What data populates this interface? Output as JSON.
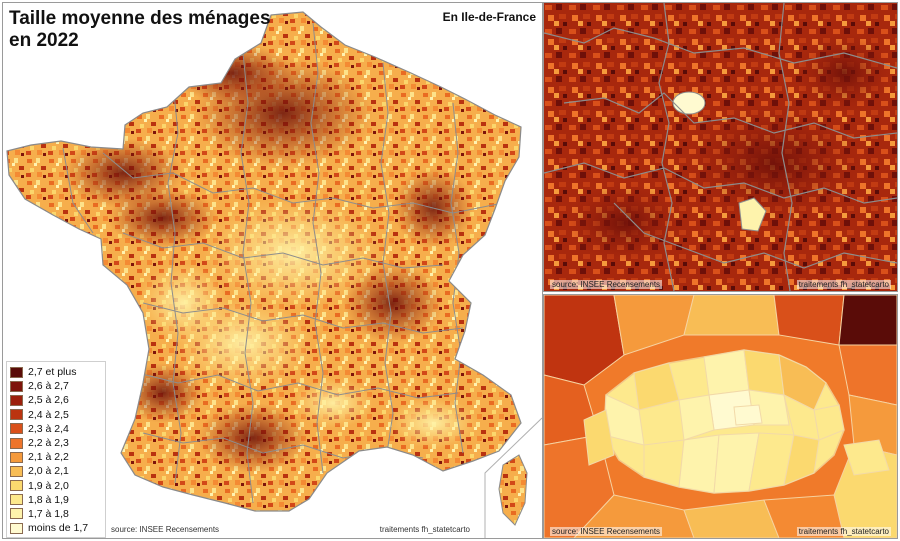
{
  "main_map": {
    "title_line1": "Taille moyenne des ménages",
    "title_line2": "en 2022",
    "inset_label": "En Ile-de-France",
    "source": "source: INSEE Recensements",
    "credit": "traitements fh_statetcarto"
  },
  "legend": {
    "items": [
      {
        "label": "2,7 et plus",
        "color": "#5a0c08"
      },
      {
        "label": "2,6 à 2,7",
        "color": "#7e140b"
      },
      {
        "label": "2,5 à 2,6",
        "color": "#9c200c"
      },
      {
        "label": "2,4 à 2,5",
        "color": "#bb3410"
      },
      {
        "label": "2,3 à 2,4",
        "color": "#d9501a"
      },
      {
        "label": "2,2 à 2,3",
        "color": "#ee742a"
      },
      {
        "label": "2,1 à 2,2",
        "color": "#f59a3c"
      },
      {
        "label": "2,0 à 2,1",
        "color": "#f8bd55"
      },
      {
        "label": "1,9 à 2,0",
        "color": "#fbd96f"
      },
      {
        "label": "1,8 à 1,9",
        "color": "#fde98d"
      },
      {
        "label": "1,7 à 1,8",
        "color": "#fef3ac"
      },
      {
        "label": "moins de 1,7",
        "color": "#fffad0"
      }
    ]
  },
  "idf_map": {
    "source": "source: INSEE Recensements",
    "credit": "traitements fh_statetcarto"
  },
  "paris_map": {
    "source": "source: INSEE Recensements",
    "credit": "traitements fh_statetcarto"
  }
}
